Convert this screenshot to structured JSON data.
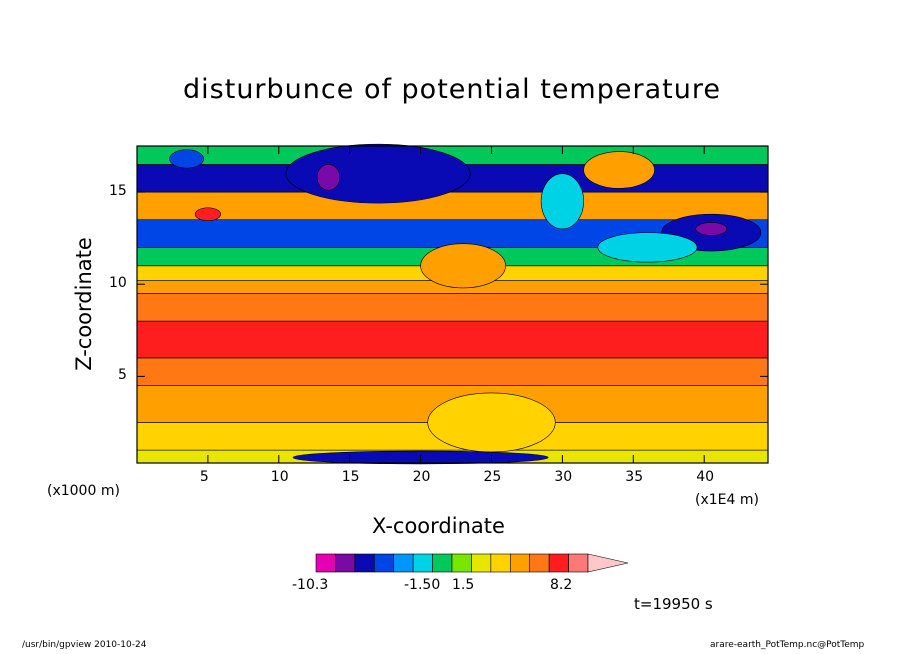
{
  "chart_data": {
    "type": "heatmap",
    "title": "disturbunce of potential temperature",
    "xlabel": "X-coordinate",
    "ylabel": "Z-coordinate",
    "x_unit_label": "(x1000 m)",
    "x_unit_label2": "(x1E4 m)",
    "xlim": [
      0,
      44.5
    ],
    "ylim": [
      0.3,
      17.5
    ],
    "xticks": [
      "5",
      "10",
      "15",
      "20",
      "25",
      "30",
      "35",
      "40"
    ],
    "yticks": [
      "5",
      "10",
      "15"
    ],
    "colorbar": {
      "labels": [
        "-10.3",
        "-1.50",
        "1.5",
        "8.2"
      ],
      "colors": [
        "#e600b4",
        "#7a0aa8",
        "#0a0ab4",
        "#0046e6",
        "#0096ff",
        "#00d2e6",
        "#00c85a",
        "#78e600",
        "#e6e600",
        "#ffd200",
        "#ffa000",
        "#ff7814",
        "#ff1e1e",
        "#ff7878",
        "#ffc8c8"
      ]
    },
    "time_label": "t=19950 s",
    "layers_by_height": [
      {
        "z": [
          0.3,
          1.0
        ],
        "color": "#e6e600"
      },
      {
        "z": [
          1.0,
          2.5
        ],
        "color": "#ffd200"
      },
      {
        "z": [
          2.5,
          4.5
        ],
        "color": "#ffa000"
      },
      {
        "z": [
          4.5,
          6.0
        ],
        "color": "#ff7814"
      },
      {
        "z": [
          6.0,
          8.0
        ],
        "color": "#ff1e1e"
      },
      {
        "z": [
          8.0,
          9.5
        ],
        "color": "#ff7814"
      },
      {
        "z": [
          9.5,
          10.2
        ],
        "color": "#ffa000"
      },
      {
        "z": [
          10.2,
          11.0
        ],
        "color": "#ffd200"
      },
      {
        "z": [
          11.0,
          12.0
        ],
        "color": "#00c85a"
      },
      {
        "z": [
          12.0,
          13.5
        ],
        "color": "#0046e6"
      },
      {
        "z": [
          13.5,
          15.0
        ],
        "color": "#ffa000"
      },
      {
        "z": [
          15.0,
          16.5
        ],
        "color": "#0a0ab4"
      },
      {
        "z": [
          16.5,
          17.5
        ],
        "color": "#00c85a"
      }
    ]
  },
  "footer": {
    "left": "/usr/bin/gpview  2010-10-24",
    "right": "arare-earth_PotTemp.nc@PotTemp"
  }
}
